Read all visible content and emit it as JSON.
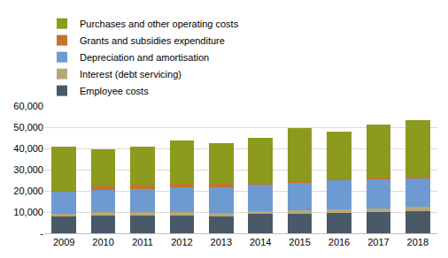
{
  "chart_data": {
    "type": "bar",
    "stacked": true,
    "grid": true,
    "legend": "top",
    "categories": [
      "2009",
      "2010",
      "2011",
      "2012",
      "2013",
      "2014",
      "2015",
      "2016",
      "2017",
      "2018"
    ],
    "series": [
      {
        "name": "Employee costs",
        "color": "#4a5968",
        "values": [
          8000,
          8500,
          8500,
          8500,
          8000,
          9000,
          9000,
          9500,
          10000,
          10500
        ]
      },
      {
        "name": "Interest (debt servicing)",
        "color": "#b5a77a",
        "values": [
          1200,
          1500,
          1500,
          1500,
          1500,
          1500,
          1800,
          1800,
          1800,
          2000
        ]
      },
      {
        "name": "Depreciation and amortisation",
        "color": "#6e9ad2",
        "values": [
          10500,
          10500,
          11000,
          11500,
          12000,
          12500,
          13000,
          13500,
          13500,
          13500
        ]
      },
      {
        "name": "Grants and subsidies expenditure",
        "color": "#c0762b",
        "values": [
          300,
          2000,
          2000,
          2000,
          1800,
          300,
          600,
          600,
          800,
          500
        ]
      },
      {
        "name": "Purchases and other operating costs",
        "color": "#8c9a1e",
        "values": [
          21000,
          17000,
          18000,
          20200,
          19000,
          21500,
          25200,
          22500,
          25100,
          26700
        ]
      }
    ],
    "ylim": [
      0,
      60000
    ],
    "yticks": [
      {
        "value": 0,
        "label": "-"
      },
      {
        "value": 10000,
        "label": "10,000"
      },
      {
        "value": 20000,
        "label": "20,000"
      },
      {
        "value": 30000,
        "label": "30,000"
      },
      {
        "value": 40000,
        "label": "40,000"
      },
      {
        "value": 50000,
        "label": "50,000"
      },
      {
        "value": 60000,
        "label": "60,000"
      }
    ]
  }
}
